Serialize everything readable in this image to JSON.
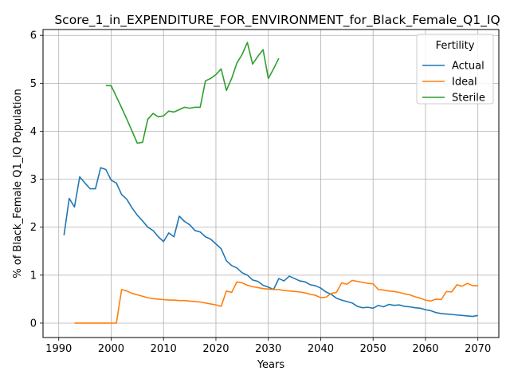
{
  "chart_data": {
    "type": "line",
    "title": "Score_1_in_EXPENDITURE_FOR_ENVIRONMENT_for_Black_Female_Q1_IQ",
    "xlabel": "Years",
    "ylabel": "% of Black_Female Q1_IQ Population",
    "xlim": [
      1987,
      2074
    ],
    "ylim": [
      -0.3,
      6.12
    ],
    "xticks": [
      "1990",
      "2000",
      "2010",
      "2020",
      "2030",
      "2040",
      "2050",
      "2060",
      "2070"
    ],
    "yticks": [
      "0",
      "1",
      "2",
      "3",
      "4",
      "5",
      "6"
    ],
    "grid": true,
    "legend": {
      "title": "Fertility",
      "location": "upper right"
    },
    "series": [
      {
        "name": "Actual",
        "color": "#1f77b4",
        "x": [
          1991,
          1992,
          1993,
          1994,
          1995,
          1996,
          1997,
          1998,
          1999,
          2000,
          2001,
          2002,
          2003,
          2004,
          2005,
          2006,
          2007,
          2008,
          2009,
          2010,
          2011,
          2012,
          2013,
          2014,
          2015,
          2016,
          2017,
          2018,
          2019,
          2020,
          2021,
          2022,
          2023,
          2024,
          2025,
          2026,
          2027,
          2028,
          2029,
          2030,
          2031,
          2032,
          2033,
          2034,
          2035,
          2036,
          2037,
          2038,
          2039,
          2040,
          2041,
          2042,
          2043,
          2044,
          2045,
          2046,
          2047,
          2048,
          2049,
          2050,
          2051,
          2052,
          2053,
          2054,
          2055,
          2056,
          2057,
          2058,
          2059,
          2060,
          2061,
          2062,
          2063,
          2064,
          2065,
          2066,
          2067,
          2068,
          2069,
          2070
        ],
        "values": [
          1.83,
          2.6,
          2.42,
          3.05,
          2.92,
          2.8,
          2.8,
          3.24,
          3.2,
          2.98,
          2.92,
          2.68,
          2.58,
          2.4,
          2.25,
          2.13,
          2.0,
          1.93,
          1.8,
          1.7,
          1.88,
          1.8,
          2.23,
          2.12,
          2.05,
          1.93,
          1.9,
          1.8,
          1.75,
          1.65,
          1.55,
          1.3,
          1.2,
          1.15,
          1.05,
          1.0,
          0.9,
          0.87,
          0.79,
          0.75,
          0.7,
          0.93,
          0.88,
          0.98,
          0.93,
          0.88,
          0.86,
          0.8,
          0.78,
          0.73,
          0.65,
          0.6,
          0.52,
          0.48,
          0.45,
          0.42,
          0.35,
          0.32,
          0.33,
          0.31,
          0.37,
          0.34,
          0.39,
          0.37,
          0.38,
          0.35,
          0.34,
          0.32,
          0.31,
          0.28,
          0.26,
          0.22,
          0.2,
          0.19,
          0.18,
          0.17,
          0.16,
          0.15,
          0.14,
          0.16
        ]
      },
      {
        "name": "Ideal",
        "color": "#ff7f0e",
        "x": [
          1993,
          1994,
          1995,
          1996,
          1997,
          1998,
          1999,
          2000,
          2001,
          2002,
          2003,
          2004,
          2005,
          2006,
          2007,
          2008,
          2009,
          2010,
          2011,
          2012,
          2013,
          2014,
          2015,
          2016,
          2017,
          2018,
          2019,
          2020,
          2021,
          2022,
          2023,
          2024,
          2025,
          2026,
          2027,
          2028,
          2029,
          2030,
          2031,
          2032,
          2033,
          2034,
          2035,
          2036,
          2037,
          2038,
          2039,
          2040,
          2041,
          2042,
          2043,
          2044,
          2045,
          2046,
          2047,
          2048,
          2049,
          2050,
          2051,
          2052,
          2053,
          2054,
          2055,
          2056,
          2057,
          2058,
          2059,
          2060,
          2061,
          2062,
          2063,
          2064,
          2065,
          2066,
          2067,
          2068,
          2069,
          2070
        ],
        "values": [
          0,
          0,
          0,
          0,
          0,
          0,
          0,
          0,
          0,
          0.7,
          0.67,
          0.62,
          0.59,
          0.56,
          0.53,
          0.51,
          0.5,
          0.49,
          0.48,
          0.48,
          0.47,
          0.47,
          0.46,
          0.45,
          0.44,
          0.42,
          0.4,
          0.38,
          0.35,
          0.67,
          0.64,
          0.86,
          0.84,
          0.79,
          0.76,
          0.74,
          0.72,
          0.71,
          0.7,
          0.7,
          0.68,
          0.67,
          0.66,
          0.65,
          0.63,
          0.6,
          0.58,
          0.53,
          0.54,
          0.62,
          0.64,
          0.84,
          0.81,
          0.89,
          0.87,
          0.85,
          0.83,
          0.82,
          0.7,
          0.69,
          0.67,
          0.66,
          0.64,
          0.61,
          0.59,
          0.55,
          0.52,
          0.48,
          0.46,
          0.5,
          0.49,
          0.66,
          0.65,
          0.8,
          0.77,
          0.83,
          0.78,
          0.78
        ]
      },
      {
        "name": "Sterile",
        "color": "#2ca02c",
        "x": [
          1999,
          2000,
          2001,
          2002,
          2003,
          2004,
          2005,
          2006,
          2007,
          2008,
          2009,
          2010,
          2011,
          2012,
          2013,
          2014,
          2015,
          2016,
          2017,
          2018,
          2019,
          2020,
          2021,
          2022,
          2023,
          2024,
          2025,
          2026,
          2027,
          2028,
          2029,
          2030,
          2031,
          2032
        ],
        "values": [
          4.95,
          4.95,
          4.72,
          4.49,
          4.25,
          4.0,
          3.75,
          3.77,
          4.25,
          4.37,
          4.3,
          4.32,
          4.42,
          4.4,
          4.45,
          4.5,
          4.48,
          4.5,
          4.5,
          5.05,
          5.1,
          5.18,
          5.3,
          4.85,
          5.1,
          5.42,
          5.6,
          5.85,
          5.4,
          5.56,
          5.7,
          5.1,
          5.3,
          5.52
        ]
      }
    ]
  }
}
